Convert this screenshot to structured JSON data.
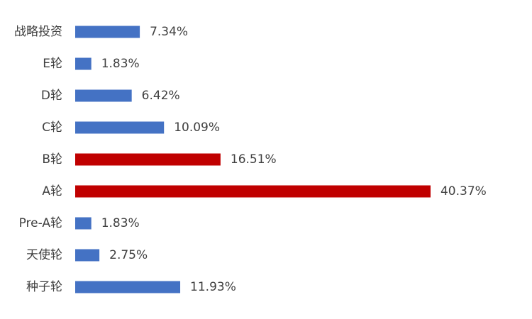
{
  "chart_data": {
    "type": "bar",
    "orientation": "horizontal",
    "categories": [
      "战略投资",
      "E轮",
      "D轮",
      "C轮",
      "B轮",
      "A轮",
      "Pre-A轮",
      "天使轮",
      "种子轮"
    ],
    "values": [
      7.34,
      1.83,
      6.42,
      10.09,
      16.51,
      40.37,
      1.83,
      2.75,
      11.93
    ],
    "value_labels": [
      "7.34%",
      "1.83%",
      "6.42%",
      "10.09%",
      "16.51%",
      "40.37%",
      "1.83%",
      "2.75%",
      "11.93%"
    ],
    "colors": [
      "#4472c4",
      "#4472c4",
      "#4472c4",
      "#4472c4",
      "#c00000",
      "#c00000",
      "#4472c4",
      "#4472c4",
      "#4472c4"
    ]
  }
}
